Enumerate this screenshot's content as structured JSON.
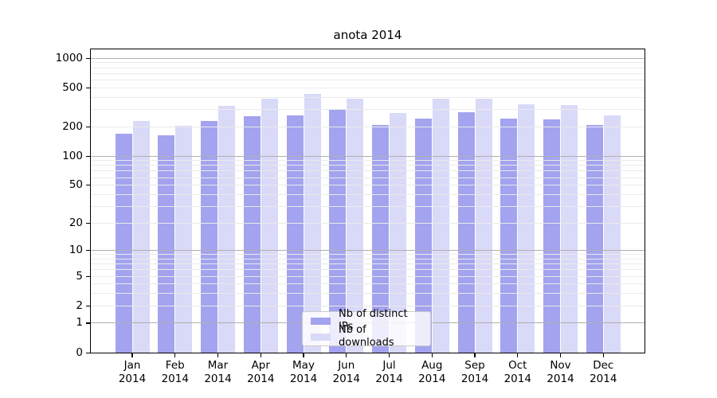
{
  "title": "anota 2014",
  "chart_data": {
    "type": "bar",
    "title": "anota 2014",
    "categories": [
      "Jan 2014",
      "Feb 2014",
      "Mar 2014",
      "Apr 2014",
      "May 2014",
      "Jun 2014",
      "Jul 2014",
      "Aug 2014",
      "Sep 2014",
      "Oct 2014",
      "Nov 2014",
      "Dec 2014"
    ],
    "x_tick_month_line": [
      "Jan",
      "Feb",
      "Mar",
      "Apr",
      "May",
      "Jun",
      "Jul",
      "Aug",
      "Sep",
      "Oct",
      "Nov",
      "Dec"
    ],
    "x_tick_year_line": "2014",
    "series": [
      {
        "name": "Nb of distinct IPs",
        "color": "#a3a3ef",
        "values": [
          169,
          164,
          231,
          257,
          260,
          297,
          209,
          241,
          282,
          244,
          238,
          209
        ]
      },
      {
        "name": "Nb of downloads",
        "color": "#d9d9f8",
        "values": [
          231,
          203,
          330,
          391,
          437,
          391,
          279,
          386,
          388,
          338,
          332,
          260
        ]
      }
    ],
    "y_scale": "log10(value+1)",
    "ylabel": "",
    "xlabel": "",
    "ylim": [
      0,
      1270
    ],
    "y_tick_labels": [
      "1000",
      "500",
      "200",
      "100",
      "50",
      "20",
      "10",
      "5",
      "2",
      "1",
      "0"
    ],
    "y_tick_values": [
      1000,
      500,
      200,
      100,
      50,
      20,
      10,
      5,
      2,
      1,
      0
    ],
    "y_major_gridlines": [
      1,
      10,
      100,
      1000
    ],
    "y_minor_gridlines": [
      2,
      3,
      4,
      5,
      6,
      7,
      8,
      9,
      20,
      30,
      40,
      50,
      60,
      70,
      80,
      90,
      200,
      300,
      400,
      500,
      600,
      700,
      800,
      900
    ],
    "grid": true,
    "legend_position": "lower center"
  },
  "colors": {
    "series_ips": "#a3a3ef",
    "series_downloads": "#d9d9f8",
    "major_grid": "#b0b0b0",
    "minor_grid": "#eaeaea",
    "spine": "#000000",
    "legend_border": "#cccccc",
    "background": "#ffffff"
  }
}
